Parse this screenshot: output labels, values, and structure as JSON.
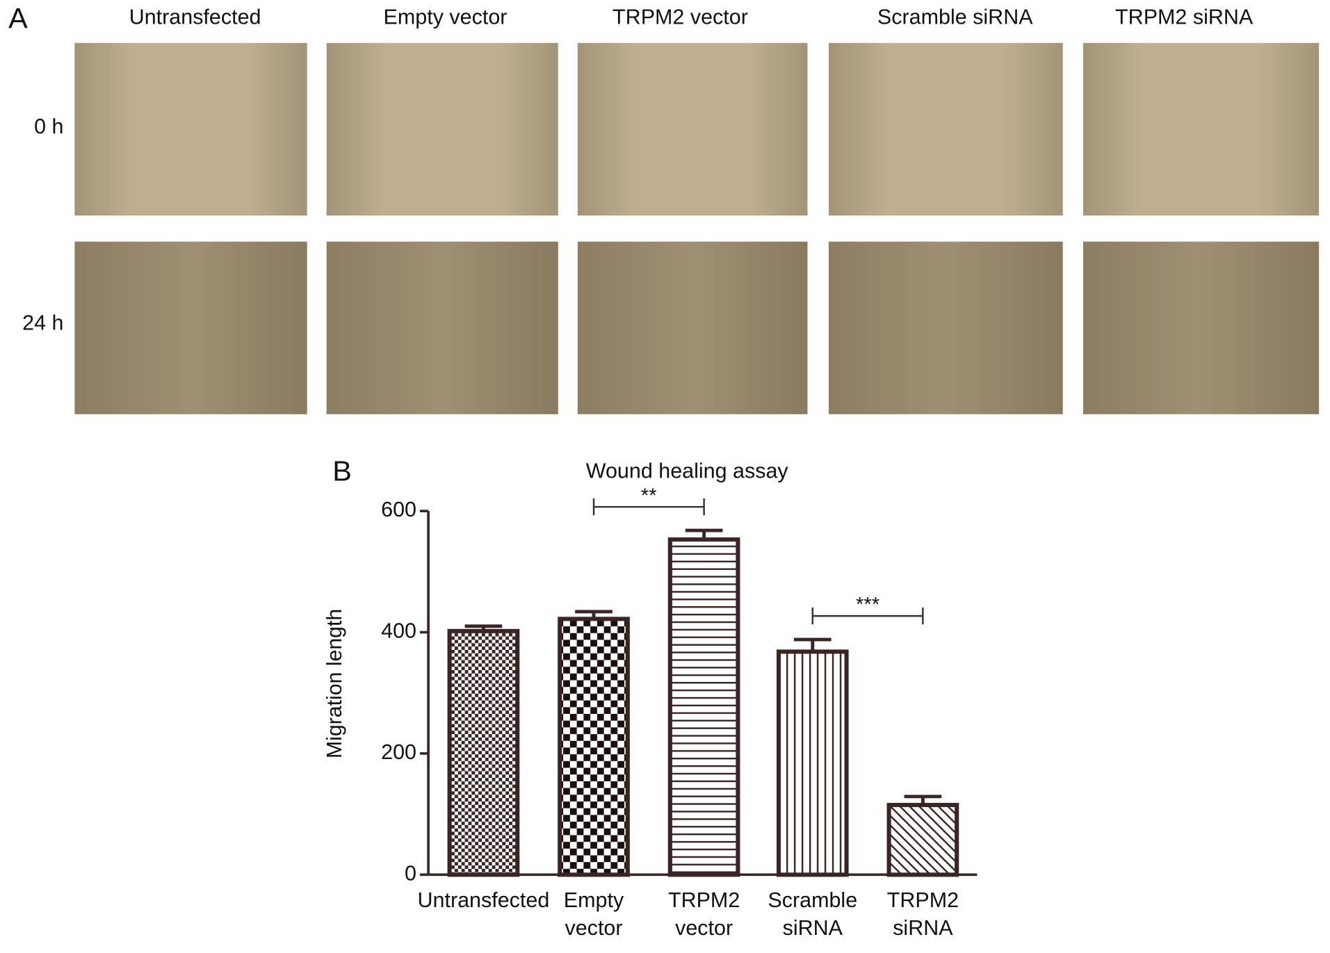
{
  "panel_a": {
    "label": "A",
    "columns": [
      "Untransfected",
      "Empty vector",
      "TRPM2 vector",
      "Scramble siRNA",
      "TRPM2 siRNA"
    ],
    "rows": [
      "0 h",
      "24 h"
    ]
  },
  "panel_b_label": "B",
  "chart_data": {
    "type": "bar",
    "title": "Wound healing assay",
    "y_label": "Migration length",
    "categories": [
      [
        "Untransfected"
      ],
      [
        "Empty",
        "vector"
      ],
      [
        "TRPM2",
        "vector"
      ],
      [
        "Scramble",
        "siRNA"
      ],
      [
        "TRPM2",
        "siRNA"
      ]
    ],
    "values": [
      402,
      422,
      553,
      368,
      115
    ],
    "errors": [
      8,
      12,
      15,
      20,
      14
    ],
    "color": "#3a2424",
    "ylim": [
      0,
      600
    ],
    "yticks": [
      0,
      200,
      400,
      600
    ],
    "annotations": [
      {
        "text": "**",
        "between": [
          1,
          2
        ]
      },
      {
        "text": "***",
        "between": [
          3,
          4
        ]
      }
    ]
  }
}
